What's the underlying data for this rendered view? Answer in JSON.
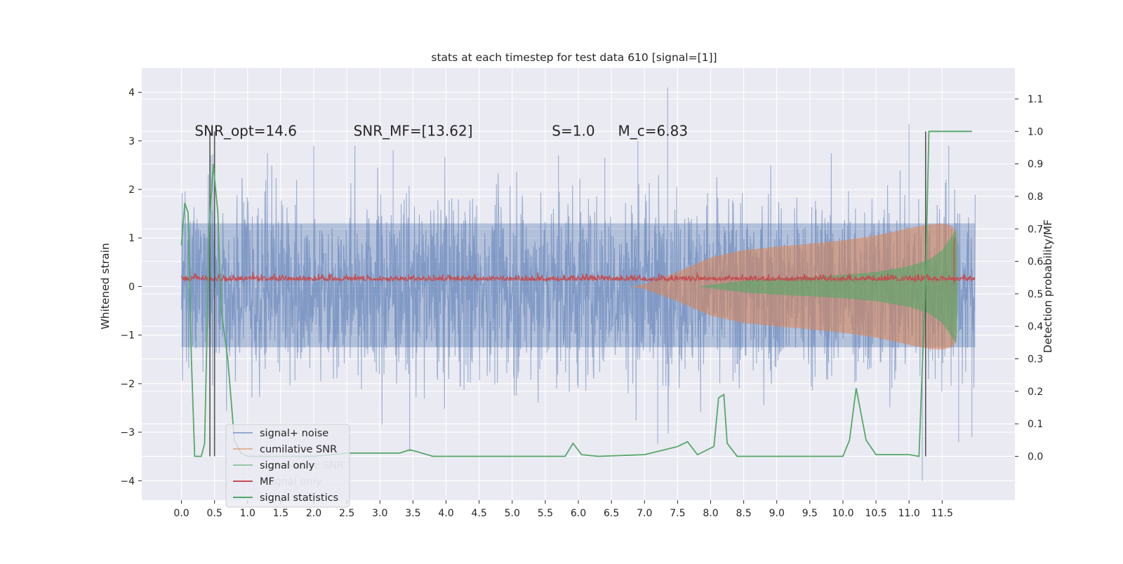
{
  "chart_data": {
    "type": "line",
    "title": "stats at each timestep for test data 610 [signal=[1]]",
    "xlabel": "",
    "ylabel": "Whitened strain",
    "y2label": "Detection probability/MF",
    "xlim": [
      -0.6,
      12.6
    ],
    "ylim": [
      -4.4,
      4.5
    ],
    "y2lim": [
      -0.135,
      1.195
    ],
    "xticks": [
      0.0,
      0.5,
      1.0,
      1.5,
      2.0,
      2.5,
      3.0,
      3.5,
      4.0,
      4.5,
      5.0,
      5.5,
      6.0,
      6.5,
      7.0,
      7.5,
      8.0,
      8.5,
      9.0,
      9.5,
      10.0,
      10.5,
      11.0,
      11.5
    ],
    "xtick_labels": [
      "0.0",
      "0.5",
      "1.0",
      "1.5",
      "2.0",
      "2.5",
      "3.0",
      "3.5",
      "4.0",
      "4.5",
      "5.0",
      "5.5",
      "6.0",
      "6.5",
      "7.0",
      "7.5",
      "8.0",
      "8.5",
      "9.0",
      "9.5",
      "10.0",
      "10.5",
      "11.0",
      "11.5"
    ],
    "yticks": [
      -4,
      -3,
      -2,
      -1,
      0,
      1,
      2,
      3,
      4
    ],
    "ytick_labels": [
      "−4",
      "−3",
      "−2",
      "−1",
      "0",
      "1",
      "2",
      "3",
      "4"
    ],
    "y2ticks": [
      0.0,
      0.1,
      0.2,
      0.3,
      0.4,
      0.5,
      0.6,
      0.7,
      0.8,
      0.9,
      1.0,
      1.1
    ],
    "y2tick_labels": [
      "0.0",
      "0.1",
      "0.2",
      "0.3",
      "0.4",
      "0.5",
      "0.6",
      "0.7",
      "0.8",
      "0.9",
      "1.0",
      "1.1"
    ],
    "grid": true,
    "legend_position": "lower-left",
    "legend": [
      {
        "label": "signal+ noise",
        "color": "#4c72b0",
        "alpha": 0.55
      },
      {
        "label": "cumilative SNR",
        "color": "#dd8452",
        "alpha": 0.55
      },
      {
        "label": "signal only",
        "color": "#55a868",
        "alpha": 0.55
      },
      {
        "label": "MF",
        "color": "#c44e52",
        "alpha": 1.0
      },
      {
        "label": "signal statistics",
        "color": "#55a868",
        "alpha": 1.0
      }
    ],
    "ghost_legend": [
      {
        "label": "cumilative SNR"
      },
      {
        "label": "signal only"
      }
    ],
    "annotations": [
      {
        "text": "SNR_opt=14.6",
        "x": 0.2,
        "y2": 1.0
      },
      {
        "text": "SNR_MF=[13.62]",
        "x": 2.6,
        "y2": 1.0
      },
      {
        "text": "S=1.0",
        "x": 5.6,
        "y2": 1.0
      },
      {
        "text": "M_c=6.83",
        "x": 6.6,
        "y2": 1.0
      }
    ],
    "vlines": [
      0.43,
      0.5,
      11.25
    ],
    "vline_range_y2": [
      0.0,
      1.0
    ],
    "series": [
      {
        "name": "signal+ noise",
        "kind": "noise_band",
        "x_range": [
          0.0,
          12.0
        ],
        "band_inner": [
          -1.25,
          1.3
        ],
        "approx_range": [
          -4.0,
          4.1
        ],
        "peaks": [
          {
            "x": 0.45,
            "y": 2.7
          },
          {
            "x": 1.3,
            "y": 2.75
          },
          {
            "x": 2.0,
            "y": 2.9
          },
          {
            "x": 3.2,
            "y": 2.8
          },
          {
            "x": 3.45,
            "y": -3.4
          },
          {
            "x": 5.7,
            "y": 2.7
          },
          {
            "x": 6.4,
            "y": 2.65
          },
          {
            "x": 6.9,
            "y": 3.0
          },
          {
            "x": 7.35,
            "y": 4.1
          },
          {
            "x": 7.2,
            "y": -3.25
          },
          {
            "x": 11.0,
            "y": 3.35
          },
          {
            "x": 11.2,
            "y": -4.0
          },
          {
            "x": 11.6,
            "y": 2.9
          },
          {
            "x": 11.75,
            "y": -3.2
          },
          {
            "x": 11.95,
            "y": -3.1
          }
        ]
      },
      {
        "name": "cumilative SNR",
        "kind": "envelope",
        "points": [
          [
            6.8,
            0.0
          ],
          [
            7.0,
            0.05
          ],
          [
            7.5,
            0.3
          ],
          [
            8.0,
            0.6
          ],
          [
            8.5,
            0.75
          ],
          [
            9.0,
            0.82
          ],
          [
            9.5,
            0.88
          ],
          [
            10.0,
            0.95
          ],
          [
            10.5,
            1.05
          ],
          [
            11.0,
            1.2
          ],
          [
            11.3,
            1.28
          ],
          [
            11.5,
            1.3
          ],
          [
            11.65,
            1.25
          ],
          [
            11.72,
            1.1
          ]
        ]
      },
      {
        "name": "signal only",
        "kind": "envelope",
        "points": [
          [
            7.8,
            0.0
          ],
          [
            8.5,
            0.12
          ],
          [
            9.0,
            0.17
          ],
          [
            9.5,
            0.2
          ],
          [
            10.0,
            0.24
          ],
          [
            10.5,
            0.3
          ],
          [
            11.0,
            0.42
          ],
          [
            11.3,
            0.55
          ],
          [
            11.5,
            0.75
          ],
          [
            11.65,
            1.05
          ],
          [
            11.72,
            1.2
          ],
          [
            11.74,
            0.0
          ]
        ]
      },
      {
        "name": "MF",
        "kind": "noisy_line",
        "x_range": [
          0.0,
          12.0
        ],
        "level": 0.12,
        "spread": 0.1,
        "spike": {
          "x": 11.68,
          "y": 1.0
        }
      },
      {
        "name": "signal statistics",
        "axis": "y2",
        "points": [
          [
            0.0,
            0.65
          ],
          [
            0.05,
            0.78
          ],
          [
            0.1,
            0.75
          ],
          [
            0.15,
            0.3
          ],
          [
            0.2,
            0.0
          ],
          [
            0.3,
            0.0
          ],
          [
            0.35,
            0.04
          ],
          [
            0.42,
            0.7
          ],
          [
            0.48,
            0.9
          ],
          [
            0.55,
            0.75
          ],
          [
            0.6,
            0.45
          ],
          [
            0.7,
            0.3
          ],
          [
            0.8,
            0.05
          ],
          [
            0.9,
            0.01
          ],
          [
            1.0,
            0.0
          ],
          [
            2.0,
            0.0
          ],
          [
            2.5,
            0.01
          ],
          [
            3.3,
            0.01
          ],
          [
            3.45,
            0.02
          ],
          [
            3.55,
            0.015
          ],
          [
            3.8,
            0.0
          ],
          [
            5.8,
            0.0
          ],
          [
            5.92,
            0.04
          ],
          [
            6.05,
            0.005
          ],
          [
            6.3,
            0.0
          ],
          [
            7.0,
            0.005
          ],
          [
            7.3,
            0.02
          ],
          [
            7.5,
            0.03
          ],
          [
            7.65,
            0.045
          ],
          [
            7.8,
            0.005
          ],
          [
            8.05,
            0.03
          ],
          [
            8.12,
            0.18
          ],
          [
            8.2,
            0.19
          ],
          [
            8.25,
            0.04
          ],
          [
            8.4,
            0.0
          ],
          [
            10.0,
            0.0
          ],
          [
            10.1,
            0.05
          ],
          [
            10.2,
            0.21
          ],
          [
            10.35,
            0.05
          ],
          [
            10.5,
            0.005
          ],
          [
            11.0,
            0.005
          ],
          [
            11.15,
            0.0
          ],
          [
            11.25,
            0.55
          ],
          [
            11.3,
            1.0
          ],
          [
            11.5,
            1.0
          ],
          [
            11.95,
            1.0
          ]
        ]
      }
    ]
  }
}
